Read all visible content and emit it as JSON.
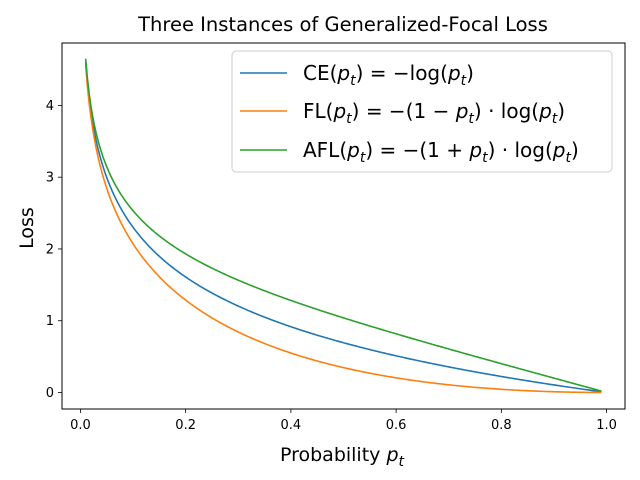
{
  "chart_data": {
    "type": "line",
    "title": "Three Instances of Generalized-Focal Loss",
    "xlabel": {
      "text": "Probability ",
      "var": "p",
      "sub": "t"
    },
    "ylabel": "Loss",
    "xlim": [
      -0.035,
      1.035
    ],
    "ylim": [
      -0.23,
      4.87
    ],
    "x_ticks": [
      0.0,
      0.2,
      0.4,
      0.6,
      0.8,
      1.0
    ],
    "x_tick_labels": [
      "0.0",
      "0.2",
      "0.4",
      "0.6",
      "0.8",
      "1.0"
    ],
    "y_ticks": [
      0,
      1,
      2,
      3,
      4
    ],
    "y_tick_labels": [
      "0",
      "1",
      "2",
      "3",
      "4"
    ],
    "grid": false,
    "legend_position": "top-right",
    "x_range": [
      0.01,
      0.99
    ],
    "series": [
      {
        "name": "CE(pt) = −log(pt)",
        "color": "#1f77b4",
        "x": [
          0.01,
          0.02,
          0.03,
          0.05,
          0.07,
          0.1,
          0.15,
          0.2,
          0.25,
          0.3,
          0.35,
          0.4,
          0.45,
          0.5,
          0.55,
          0.6,
          0.65,
          0.7,
          0.75,
          0.8,
          0.85,
          0.9,
          0.95,
          0.99
        ],
        "y": [
          4.61,
          3.91,
          3.51,
          3.0,
          2.66,
          2.3,
          1.9,
          1.61,
          1.39,
          1.2,
          1.05,
          0.92,
          0.8,
          0.69,
          0.6,
          0.51,
          0.43,
          0.36,
          0.29,
          0.22,
          0.16,
          0.11,
          0.05,
          0.01
        ]
      },
      {
        "name": "FL(pt) = −(1 − pt) · log(pt)",
        "color": "#ff7f0e",
        "x": [
          0.01,
          0.02,
          0.03,
          0.05,
          0.07,
          0.1,
          0.15,
          0.2,
          0.25,
          0.3,
          0.35,
          0.4,
          0.45,
          0.5,
          0.55,
          0.6,
          0.65,
          0.7,
          0.75,
          0.8,
          0.85,
          0.9,
          0.95,
          0.99
        ],
        "y": [
          4.56,
          3.83,
          3.4,
          2.85,
          2.47,
          2.07,
          1.61,
          1.29,
          1.04,
          0.84,
          0.68,
          0.55,
          0.44,
          0.35,
          0.27,
          0.2,
          0.15,
          0.11,
          0.07,
          0.04,
          0.02,
          0.01,
          0.0,
          0.0
        ]
      },
      {
        "name": "AFL(pt) = −(1 + pt) · log(pt)",
        "color": "#2ca02c",
        "x": [
          0.01,
          0.02,
          0.03,
          0.05,
          0.07,
          0.1,
          0.15,
          0.2,
          0.25,
          0.3,
          0.35,
          0.4,
          0.45,
          0.5,
          0.55,
          0.6,
          0.65,
          0.7,
          0.75,
          0.8,
          0.85,
          0.9,
          0.95,
          0.99
        ],
        "y": [
          4.65,
          3.99,
          3.61,
          3.15,
          2.85,
          2.53,
          2.18,
          1.93,
          1.73,
          1.57,
          1.42,
          1.28,
          1.16,
          1.04,
          0.93,
          0.82,
          0.71,
          0.61,
          0.5,
          0.4,
          0.3,
          0.2,
          0.1,
          0.02
        ]
      }
    ],
    "legend": [
      {
        "fn": "CE",
        "expr": "−log(pt)"
      },
      {
        "fn": "FL",
        "expr": "−(1 − pt) · log(pt)"
      },
      {
        "fn": "AFL",
        "expr": "−(1 + pt) · log(pt)"
      }
    ]
  }
}
